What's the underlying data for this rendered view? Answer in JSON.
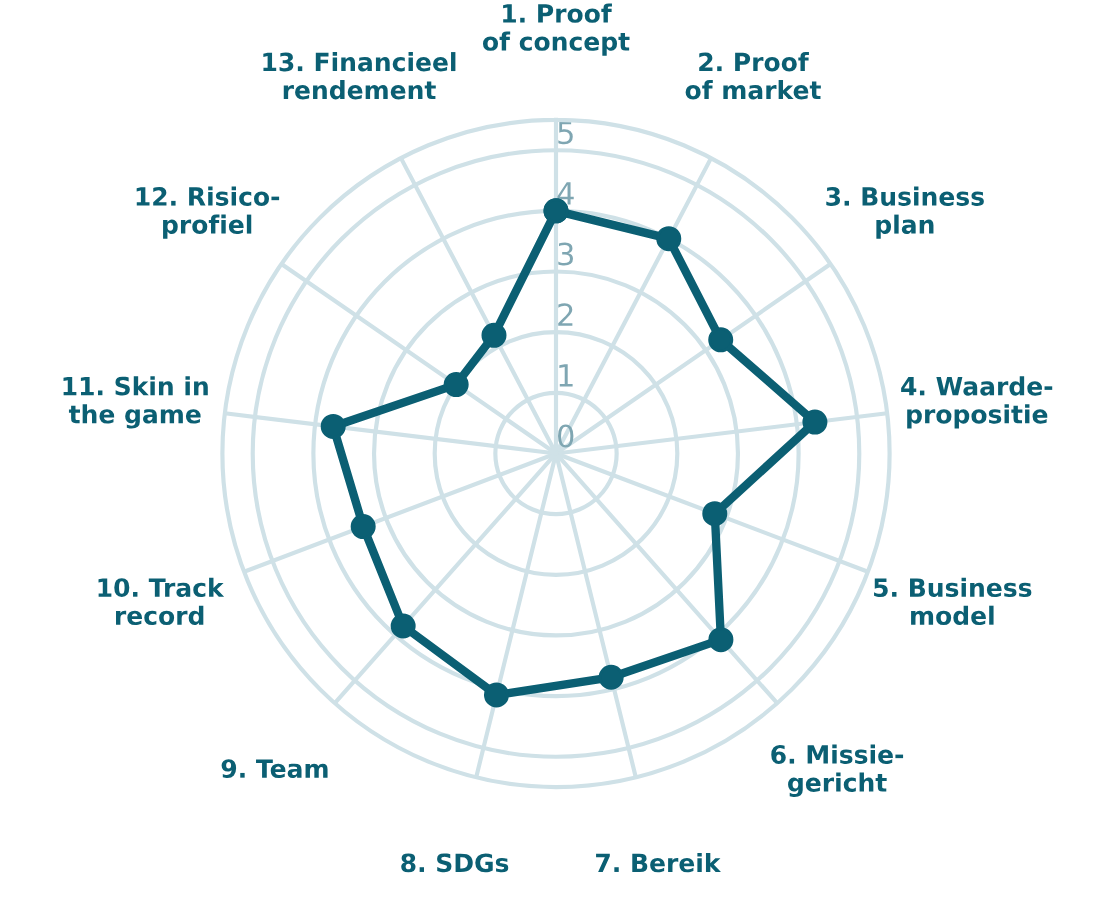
{
  "chart_data": {
    "type": "radar",
    "categories": [
      "1. Proof\nof concept",
      "2. Proof\nof market",
      "3. Business\nplan",
      "4. Waarde-\npropositie",
      "5. Business\nmodel",
      "6. Missie-\ngericht",
      "7. Bereik",
      "8. SDGs",
      "9. Team",
      "10. Track\nrecord",
      "11. Skin in\nthe game",
      "12. Risico-\nprofiel",
      "13. Financieel\nrendement"
    ],
    "series": [
      {
        "color": "#0b5f73",
        "values": [
          4,
          4,
          3.3,
          4.3,
          2.8,
          4.1,
          3.8,
          4.1,
          3.8,
          3.4,
          3.7,
          2.0,
          2.2
        ]
      }
    ],
    "ylim": [
      0,
      5.5
    ],
    "yticks": [
      0,
      1,
      2,
      3,
      4,
      5
    ],
    "grid": true,
    "marker": "circle",
    "line_style": "solid"
  }
}
